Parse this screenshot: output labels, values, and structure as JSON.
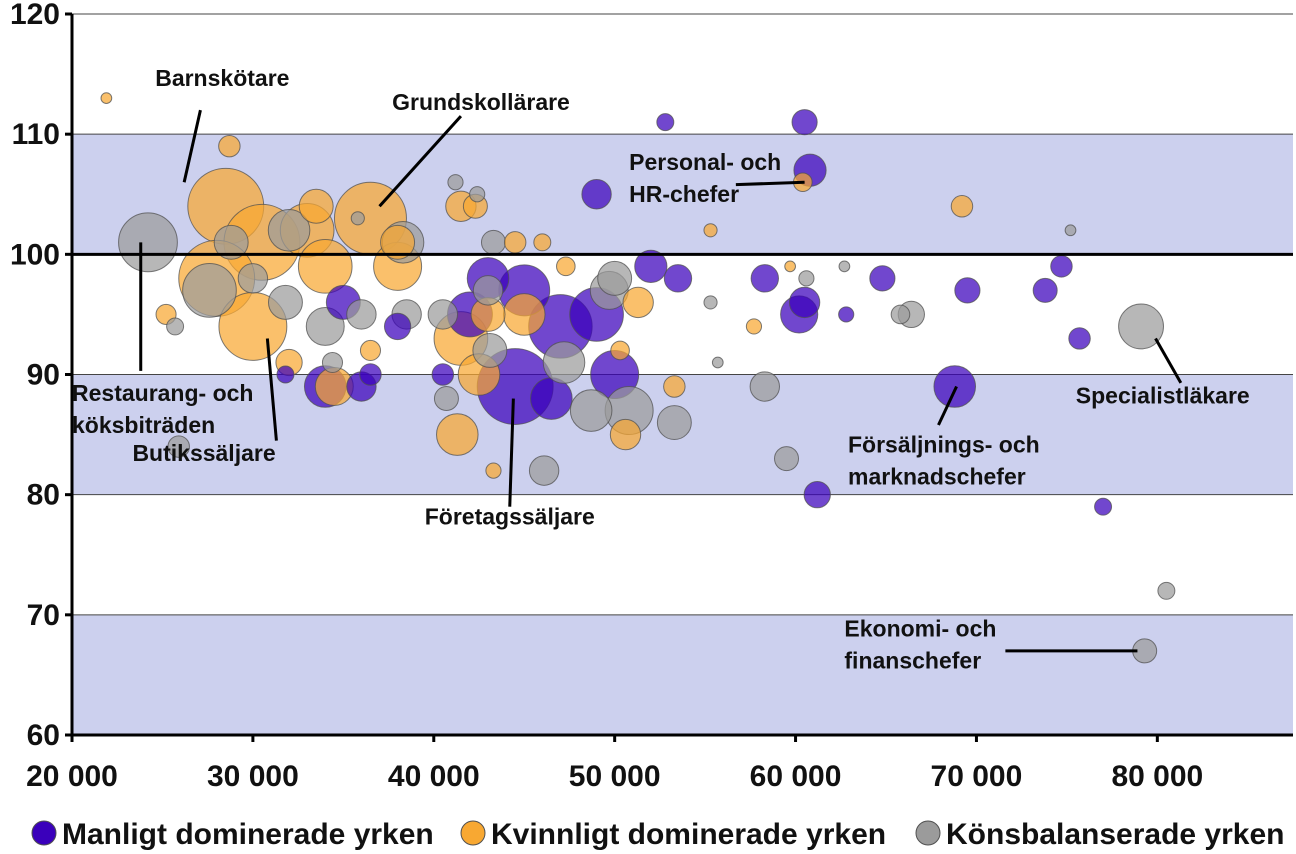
{
  "chart_data": {
    "type": "scatter",
    "variant": "bubble",
    "title": "",
    "xlabel": "",
    "ylabel": "",
    "xlim": [
      20000,
      87500
    ],
    "ylim": [
      60,
      120
    ],
    "x_ticks": [
      20000,
      30000,
      40000,
      50000,
      60000,
      70000,
      80000
    ],
    "x_tick_labels": [
      "20 000",
      "30 000",
      "40 000",
      "50 000",
      "60 000",
      "70 000",
      "80 000"
    ],
    "y_ticks": [
      60,
      70,
      80,
      90,
      100,
      110,
      120
    ],
    "y_tick_labels": [
      "60",
      "70",
      "80",
      "90",
      "100",
      "110",
      "120"
    ],
    "bands": [
      {
        "from": 60,
        "to": 70,
        "color": "#ccd0ee"
      },
      {
        "from": 80,
        "to": 90,
        "color": "#ccd0ee"
      },
      {
        "from": 100,
        "to": 110,
        "color": "#ccd0ee"
      }
    ],
    "reference_line": 100,
    "legend_position": "bottom",
    "series": [
      {
        "name": "Manligt dominerade yrken",
        "color": "#3a00bb",
        "points": [
          {
            "x": 44500,
            "y": 89,
            "size": 10
          },
          {
            "x": 47000,
            "y": 94,
            "size": 7
          },
          {
            "x": 49000,
            "y": 95,
            "size": 5
          },
          {
            "x": 50000,
            "y": 90,
            "size": 4
          },
          {
            "x": 45000,
            "y": 97,
            "size": 4.5
          },
          {
            "x": 43000,
            "y": 98,
            "size": 3
          },
          {
            "x": 42000,
            "y": 95,
            "size": 3.5
          },
          {
            "x": 46500,
            "y": 88,
            "size": 3
          },
          {
            "x": 52000,
            "y": 99,
            "size": 1.8
          },
          {
            "x": 53500,
            "y": 98,
            "size": 1.3
          },
          {
            "x": 49000,
            "y": 105,
            "size": 1.5
          },
          {
            "x": 52800,
            "y": 111,
            "size": 0.5
          },
          {
            "x": 60500,
            "y": 111,
            "size": 1.1
          },
          {
            "x": 60800,
            "y": 107,
            "size": 1.8
          },
          {
            "x": 58300,
            "y": 98,
            "size": 1.3
          },
          {
            "x": 60500,
            "y": 96,
            "size": 1.6
          },
          {
            "x": 60200,
            "y": 95,
            "size": 2.4
          },
          {
            "x": 62800,
            "y": 95,
            "size": 0.4
          },
          {
            "x": 64800,
            "y": 98,
            "size": 1.1
          },
          {
            "x": 68800,
            "y": 89,
            "size": 3.0
          },
          {
            "x": 69500,
            "y": 97,
            "size": 1.1
          },
          {
            "x": 61200,
            "y": 80,
            "size": 1.2
          },
          {
            "x": 73800,
            "y": 97,
            "size": 1.0
          },
          {
            "x": 74700,
            "y": 99,
            "size": 0.8
          },
          {
            "x": 75700,
            "y": 93,
            "size": 0.8
          },
          {
            "x": 77000,
            "y": 79,
            "size": 0.5
          },
          {
            "x": 34000,
            "y": 89,
            "size": 3
          },
          {
            "x": 36000,
            "y": 89,
            "size": 1.5
          },
          {
            "x": 35000,
            "y": 96,
            "size": 2
          },
          {
            "x": 38000,
            "y": 94,
            "size": 1.2
          },
          {
            "x": 31800,
            "y": 90,
            "size": 0.5
          },
          {
            "x": 36500,
            "y": 90,
            "size": 0.8
          },
          {
            "x": 40500,
            "y": 90,
            "size": 0.8
          }
        ]
      },
      {
        "name": "Kvinnligt dominerade yrken",
        "color": "#f8a832",
        "points": [
          {
            "x": 28500,
            "y": 104,
            "size": 10
          },
          {
            "x": 36500,
            "y": 103,
            "size": 9
          },
          {
            "x": 30500,
            "y": 101,
            "size": 10
          },
          {
            "x": 28000,
            "y": 98,
            "size": 10
          },
          {
            "x": 30000,
            "y": 94,
            "size": 8
          },
          {
            "x": 33000,
            "y": 102,
            "size": 5
          },
          {
            "x": 34000,
            "y": 99,
            "size": 5
          },
          {
            "x": 38000,
            "y": 99,
            "size": 4
          },
          {
            "x": 41500,
            "y": 93,
            "size": 5
          },
          {
            "x": 42500,
            "y": 90,
            "size": 3
          },
          {
            "x": 41300,
            "y": 85,
            "size": 3
          },
          {
            "x": 43000,
            "y": 95,
            "size": 2
          },
          {
            "x": 45000,
            "y": 95,
            "size": 3
          },
          {
            "x": 41500,
            "y": 104,
            "size": 1.6
          },
          {
            "x": 42300,
            "y": 104,
            "size": 1.0
          },
          {
            "x": 44500,
            "y": 101,
            "size": 0.8
          },
          {
            "x": 46000,
            "y": 101,
            "size": 0.5
          },
          {
            "x": 47300,
            "y": 99,
            "size": 0.6
          },
          {
            "x": 50600,
            "y": 85,
            "size": 1.6
          },
          {
            "x": 50300,
            "y": 92,
            "size": 0.6
          },
          {
            "x": 51300,
            "y": 96,
            "size": 1.6
          },
          {
            "x": 53300,
            "y": 89,
            "size": 0.8
          },
          {
            "x": 55300,
            "y": 102,
            "size": 0.3
          },
          {
            "x": 57700,
            "y": 94,
            "size": 0.4
          },
          {
            "x": 59700,
            "y": 99,
            "size": 0.2
          },
          {
            "x": 60400,
            "y": 106,
            "size": 0.6
          },
          {
            "x": 69200,
            "y": 104,
            "size": 0.8
          },
          {
            "x": 21900,
            "y": 113,
            "size": 0.2
          },
          {
            "x": 28700,
            "y": 109,
            "size": 0.8
          },
          {
            "x": 32000,
            "y": 91,
            "size": 1.2
          },
          {
            "x": 34500,
            "y": 89,
            "size": 2.5
          },
          {
            "x": 36500,
            "y": 92,
            "size": 0.7
          },
          {
            "x": 43300,
            "y": 82,
            "size": 0.4
          },
          {
            "x": 25200,
            "y": 95,
            "size": 0.7
          },
          {
            "x": 33500,
            "y": 104,
            "size": 2.0
          },
          {
            "x": 38000,
            "y": 101,
            "size": 2.0
          }
        ]
      },
      {
        "name": "Könsbalanserade yrken",
        "color": "#9b9b9b",
        "points": [
          {
            "x": 24200,
            "y": 101,
            "size": 6
          },
          {
            "x": 27600,
            "y": 97,
            "size": 5
          },
          {
            "x": 32000,
            "y": 102,
            "size": 3
          },
          {
            "x": 28800,
            "y": 101,
            "size": 2
          },
          {
            "x": 30000,
            "y": 98,
            "size": 1.5
          },
          {
            "x": 31800,
            "y": 96,
            "size": 2
          },
          {
            "x": 34000,
            "y": 94,
            "size": 2.5
          },
          {
            "x": 36000,
            "y": 95,
            "size": 1.5
          },
          {
            "x": 38300,
            "y": 101,
            "size": 3
          },
          {
            "x": 38500,
            "y": 95,
            "size": 1.5
          },
          {
            "x": 40500,
            "y": 95,
            "size": 1.5
          },
          {
            "x": 40700,
            "y": 88,
            "size": 1
          },
          {
            "x": 41200,
            "y": 106,
            "size": 0.4
          },
          {
            "x": 42400,
            "y": 105,
            "size": 0.4
          },
          {
            "x": 43300,
            "y": 101,
            "size": 1
          },
          {
            "x": 43000,
            "y": 97,
            "size": 1.5
          },
          {
            "x": 43100,
            "y": 92,
            "size": 2
          },
          {
            "x": 47200,
            "y": 91,
            "size": 3
          },
          {
            "x": 48700,
            "y": 87,
            "size": 3
          },
          {
            "x": 49700,
            "y": 97,
            "size": 2.5
          },
          {
            "x": 50000,
            "y": 98,
            "size": 2
          },
          {
            "x": 50800,
            "y": 87,
            "size": 4
          },
          {
            "x": 53300,
            "y": 86,
            "size": 2
          },
          {
            "x": 46100,
            "y": 82,
            "size": 1.5
          },
          {
            "x": 25900,
            "y": 84,
            "size": 0.8
          },
          {
            "x": 25700,
            "y": 94,
            "size": 0.5
          },
          {
            "x": 55300,
            "y": 96,
            "size": 0.3
          },
          {
            "x": 55700,
            "y": 91,
            "size": 0.2
          },
          {
            "x": 58300,
            "y": 89,
            "size": 1.5
          },
          {
            "x": 59500,
            "y": 83,
            "size": 1
          },
          {
            "x": 60600,
            "y": 98,
            "size": 0.4
          },
          {
            "x": 62700,
            "y": 99,
            "size": 0.2
          },
          {
            "x": 65800,
            "y": 95,
            "size": 0.6
          },
          {
            "x": 66400,
            "y": 95,
            "size": 1.2
          },
          {
            "x": 75200,
            "y": 102,
            "size": 0.2
          },
          {
            "x": 79100,
            "y": 94,
            "size": 3.5
          },
          {
            "x": 80500,
            "y": 72,
            "size": 0.5
          },
          {
            "x": 79300,
            "y": 67,
            "size": 1
          },
          {
            "x": 35800,
            "y": 103,
            "size": 0.3
          },
          {
            "x": 34400,
            "y": 91,
            "size": 0.7
          }
        ]
      }
    ],
    "annotations": [
      {
        "lines": [
          "Barnskötare"
        ],
        "text_at": [
          24600,
          114
        ],
        "anchor": "start",
        "point_from": [
          27100,
          112
        ],
        "point_to": [
          26200,
          106
        ]
      },
      {
        "lines": [
          "Grundskollärare"
        ],
        "text_at": [
          37700,
          112
        ],
        "anchor": "start",
        "point_from": [
          41500,
          111.5
        ],
        "point_to": [
          37000,
          104
        ]
      },
      {
        "lines": [
          "Personal- och",
          "HR-chefer"
        ],
        "text_at": [
          50800,
          107
        ],
        "anchor": "start",
        "point_from": [
          56700,
          105.8
        ],
        "point_to": [
          60500,
          106
        ]
      },
      {
        "lines": [
          "Restaurang- och",
          "köksbiträden"
        ],
        "text_at": [
          20000,
          87.8
        ],
        "anchor": "start",
        "point_from": [
          23800,
          90.3
        ],
        "point_to": [
          23800,
          101
        ]
      },
      {
        "lines": [
          "Butikssäljare"
        ],
        "text_at": [
          27300,
          82.8
        ],
        "anchor": "middle",
        "point_from": [
          31300,
          84.5
        ],
        "point_to": [
          30800,
          93
        ]
      },
      {
        "lines": [
          "Företagssäljare"
        ],
        "text_at": [
          44200,
          77.5
        ],
        "anchor": "middle",
        "point_from": [
          44200,
          79
        ],
        "point_to": [
          44400,
          88
        ]
      },
      {
        "lines": [
          "Försäljnings- och",
          "marknadschefer"
        ],
        "text_at": [
          62900,
          83.5
        ],
        "anchor": "start",
        "point_from": [
          67900,
          85.8
        ],
        "point_to": [
          68900,
          89
        ]
      },
      {
        "lines": [
          "Specialistläkare"
        ],
        "text_at": [
          80300,
          87.6
        ],
        "anchor": "middle",
        "point_from": [
          81300,
          89.3
        ],
        "point_to": [
          79900,
          93
        ]
      },
      {
        "lines": [
          "Ekonomi- och",
          "finanschefer"
        ],
        "text_at": [
          62700,
          68.2
        ],
        "anchor": "start",
        "point_from": [
          71600,
          67
        ],
        "point_to": [
          78900,
          67
        ]
      }
    ]
  }
}
